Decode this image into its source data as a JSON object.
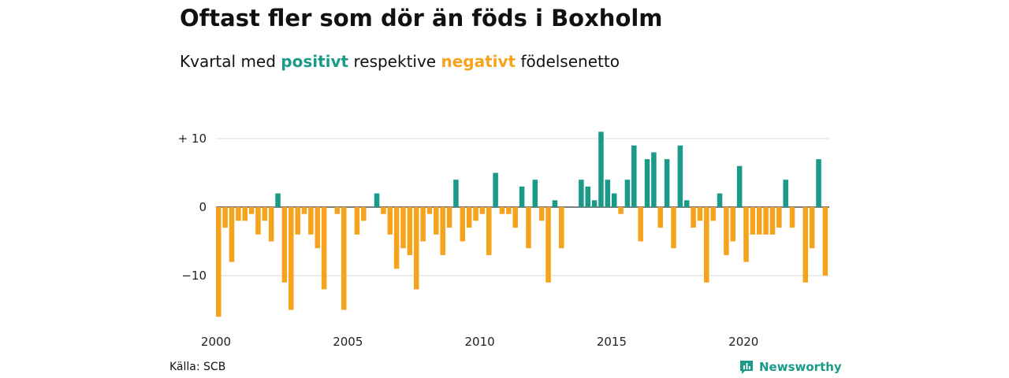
{
  "header": {
    "title": "Oftast fler som dör än föds i Boxholm",
    "subtitle_pre": "Kvartal med ",
    "subtitle_pos": "positivt",
    "subtitle_mid": " respektive ",
    "subtitle_neg": "negativt",
    "subtitle_post": " födelsenetto"
  },
  "footer": {
    "source": "Källa: SCB",
    "brand": "Newsworthy"
  },
  "colors": {
    "positive": "#1b9a8a",
    "negative": "#f5a31d",
    "grid": "#d9d9d9"
  },
  "chart_data": {
    "type": "bar",
    "title": "Oftast fler som dör än föds i Boxholm",
    "subtitle": "Kvartal med positivt respektive negativt födelsenetto",
    "x_start": 2000,
    "x_end": 2023,
    "xticks": [
      2000,
      2005,
      2010,
      2015,
      2020
    ],
    "xtick_labels": [
      "2000",
      "2005",
      "2010",
      "2015",
      "2020"
    ],
    "yticks": [
      10,
      0,
      -10
    ],
    "ytick_labels": [
      "+ 10",
      "0",
      "−10"
    ],
    "ylim": [
      -16,
      11
    ],
    "grid": true,
    "values": [
      -16,
      -3,
      -8,
      -2,
      -2,
      -1,
      -4,
      -2,
      -5,
      2,
      -11,
      -15,
      -4,
      -1,
      -4,
      -6,
      -12,
      0,
      -1,
      -15,
      0,
      -4,
      -2,
      0,
      2,
      -1,
      -4,
      -9,
      -6,
      -7,
      -12,
      -5,
      -1,
      -4,
      -7,
      -3,
      4,
      -5,
      -3,
      -2,
      -1,
      -7,
      5,
      -1,
      -1,
      -3,
      3,
      -6,
      4,
      -2,
      -11,
      1,
      -6,
      0,
      0,
      4,
      3,
      1,
      11,
      4,
      2,
      -1,
      4,
      9,
      -5,
      7,
      8,
      -3,
      7,
      -6,
      9,
      1,
      -3,
      -2,
      -11,
      -2,
      2,
      -7,
      -5,
      6,
      -8,
      -4,
      -4,
      -4,
      -4,
      -3,
      4,
      -3,
      0,
      -11,
      -6,
      7,
      -10
    ]
  }
}
